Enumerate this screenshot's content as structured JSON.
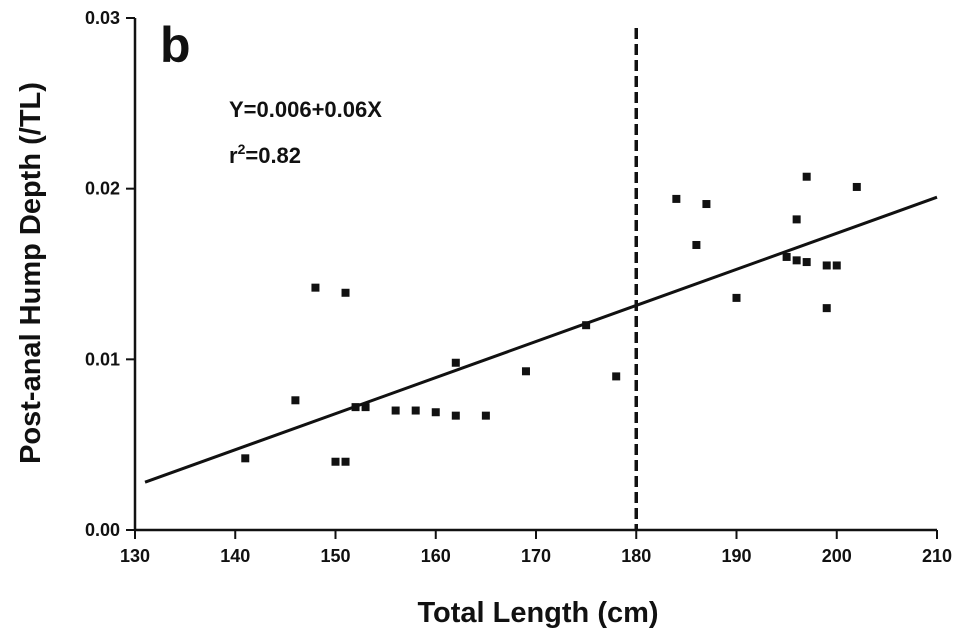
{
  "chart_data": {
    "type": "scatter",
    "panel_label": "b",
    "title": "",
    "xlabel": "Total Length (cm)",
    "ylabel": "Post-anal Hump Depth (/TL)",
    "xlim": [
      130,
      210
    ],
    "ylim": [
      0.0,
      0.03
    ],
    "x_ticks": [
      130,
      140,
      150,
      160,
      170,
      180,
      190,
      200,
      210
    ],
    "y_ticks": [
      0.0,
      0.01,
      0.02,
      0.03
    ],
    "y_tick_labels": [
      "0.00",
      "0.01",
      "0.02",
      "0.03"
    ],
    "grid": false,
    "legend": "none",
    "annotations": {
      "equation": "Y=0.006+0.06X",
      "r2_prefix": "r",
      "r2_sup": "2",
      "r2_value": "=0.82"
    },
    "regression_line": {
      "x": [
        131,
        210
      ],
      "y": [
        0.0028,
        0.0195
      ]
    },
    "vertical_reference_x": 180,
    "points": {
      "x": [
        141,
        146,
        148,
        150,
        151,
        151,
        152,
        153,
        156,
        158,
        160,
        162,
        162,
        165,
        169,
        175,
        178,
        184,
        186,
        187,
        190,
        195,
        196,
        196,
        197,
        197,
        199,
        199,
        200,
        202
      ],
      "y": [
        0.0042,
        0.0076,
        0.0142,
        0.004,
        0.004,
        0.0139,
        0.0072,
        0.0072,
        0.007,
        0.007,
        0.0069,
        0.0067,
        0.0098,
        0.0067,
        0.0093,
        0.012,
        0.009,
        0.0194,
        0.0167,
        0.0191,
        0.0136,
        0.016,
        0.0158,
        0.0182,
        0.0157,
        0.0207,
        0.013,
        0.0155,
        0.0155,
        0.0201
      ]
    },
    "colors": {
      "ink": "#111111"
    }
  }
}
